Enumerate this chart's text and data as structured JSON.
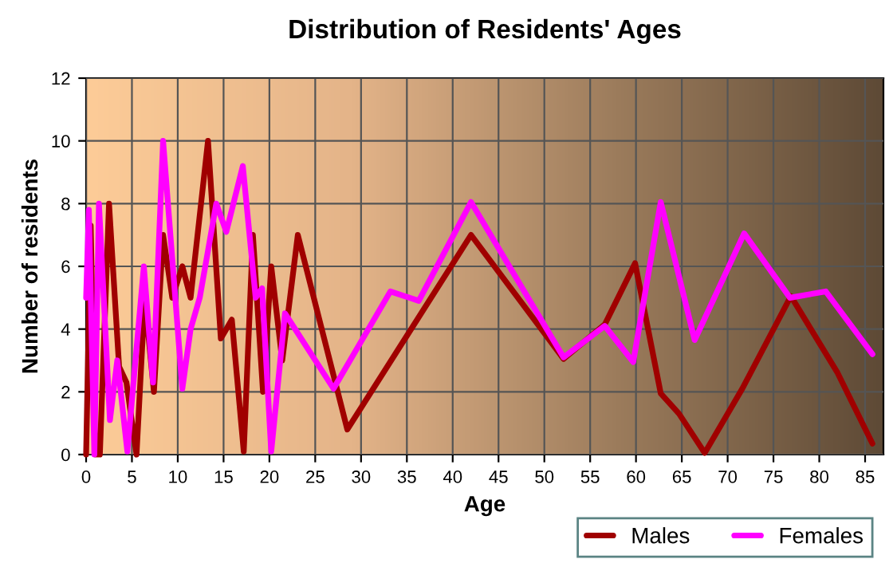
{
  "chart_data": {
    "type": "line",
    "title": "Distribution of Residents' Ages",
    "xlabel": "Age",
    "ylabel": "Number of residents",
    "xlim": [
      0,
      87
    ],
    "xticks": [
      0,
      5,
      10,
      15,
      20,
      25,
      30,
      35,
      40,
      45,
      50,
      55,
      60,
      65,
      70,
      75,
      80,
      85
    ],
    "ylim": [
      0,
      12
    ],
    "yticks": [
      0,
      2,
      4,
      6,
      8,
      10,
      12
    ],
    "grid": true,
    "legend": "bottom right",
    "marker": "none",
    "line_style": "solid",
    "series": [
      {
        "name": "Males",
        "color": "#a00000",
        "x": [
          0,
          0.5,
          1,
          1.5,
          2.5,
          3.6,
          4.4,
          5.5,
          6.4,
          7.4,
          8.4,
          9.4,
          10.5,
          11.4,
          13.3,
          14.7,
          15.9,
          17.2,
          18.2,
          19.3,
          20.2,
          21.4,
          23.1,
          28.5,
          42,
          52.1,
          56.6,
          59.9,
          62.7,
          64.7,
          67.5,
          71.6,
          76.9,
          82,
          85.8
        ],
        "values": [
          0,
          7.3,
          0,
          0,
          8,
          2.8,
          2.3,
          0,
          5,
          2,
          7,
          5,
          6,
          5,
          10,
          3.7,
          4.3,
          0.1,
          7,
          2,
          6,
          3,
          7,
          0.8,
          7,
          3.05,
          4.15,
          6.1,
          1.95,
          1.3,
          0.05,
          2.1,
          5.05,
          2.6,
          0.35
        ]
      },
      {
        "name": "Females",
        "color": "#ff00ff",
        "x": [
          0,
          0.3,
          0.9,
          1.4,
          2.6,
          3.4,
          4.5,
          6.3,
          7.3,
          8.4,
          10.5,
          11.4,
          12.4,
          14.2,
          15.3,
          17.1,
          18.5,
          19.2,
          20.2,
          21.7,
          27,
          33.2,
          36.3,
          42,
          52.1,
          56.6,
          59.7,
          62.7,
          66.4,
          71.8,
          76.8,
          80.7,
          85.8
        ],
        "values": [
          5,
          7.8,
          0,
          8,
          1.1,
          3,
          0.1,
          6,
          2.3,
          10,
          2.1,
          4,
          5,
          8,
          7.1,
          9.2,
          5,
          5.3,
          0.1,
          4.5,
          2.1,
          5.2,
          4.9,
          8.05,
          3.1,
          4.1,
          2.95,
          8.05,
          3.65,
          7.05,
          5,
          5.2,
          3.2
        ]
      }
    ]
  }
}
